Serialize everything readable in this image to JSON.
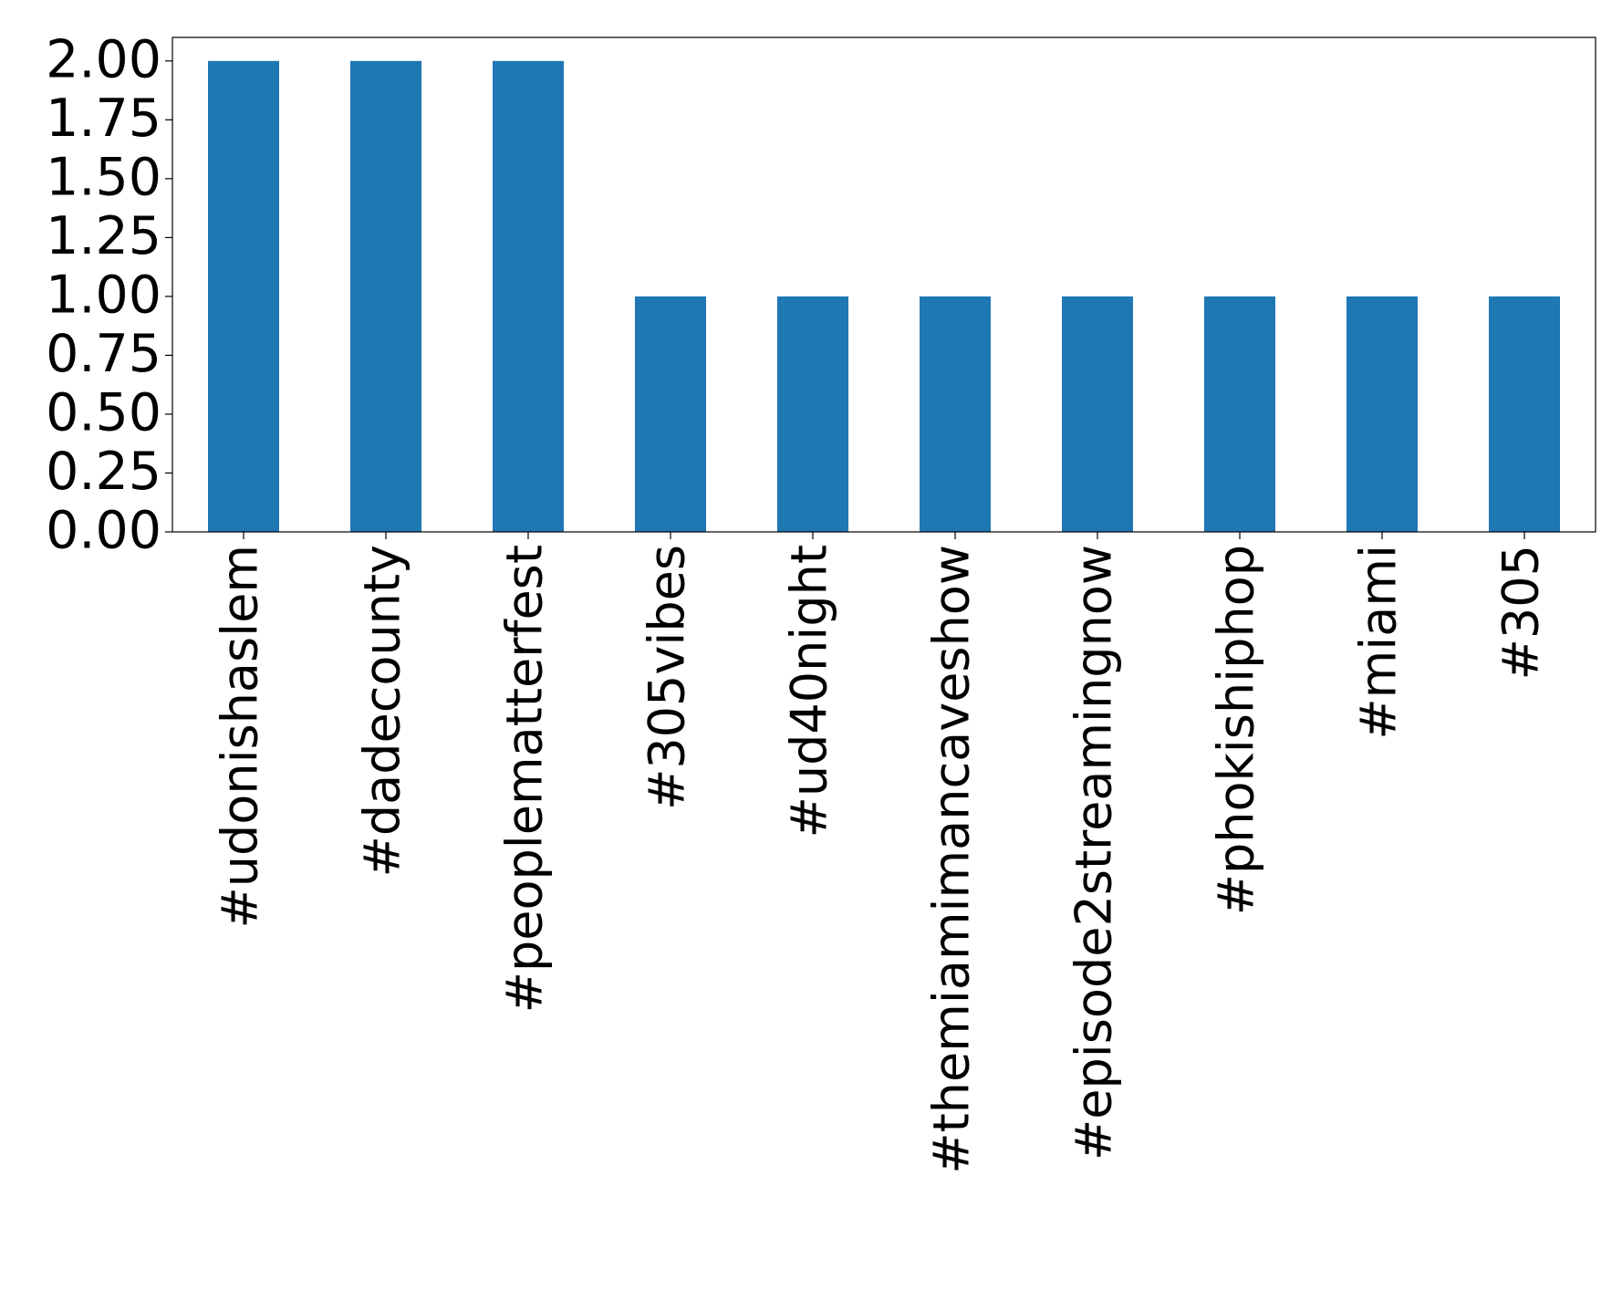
{
  "chart_data": {
    "type": "bar",
    "categories": [
      "#udonishaslem",
      "#dadecounty",
      "#peoplematterfest",
      "#305vibes",
      "#ud40night",
      "#themiamimancaveshow",
      "#episode2streamingnow",
      "#phokishiphop",
      "#miami",
      "#305"
    ],
    "values": [
      2,
      2,
      2,
      1,
      1,
      1,
      1,
      1,
      1,
      1
    ],
    "color": "#1f77b4",
    "ylim": [
      0,
      2.1
    ],
    "yticks": [
      {
        "value": 0,
        "label": "0.00"
      },
      {
        "value": 0.25,
        "label": "0.25"
      },
      {
        "value": 0.5,
        "label": "0.50"
      },
      {
        "value": 0.75,
        "label": "0.75"
      },
      {
        "value": 1,
        "label": "1.00"
      },
      {
        "value": 1.25,
        "label": "1.25"
      },
      {
        "value": 1.5,
        "label": "1.50"
      },
      {
        "value": 1.75,
        "label": "1.75"
      },
      {
        "value": 2,
        "label": "2.00"
      }
    ],
    "grid": false
  }
}
